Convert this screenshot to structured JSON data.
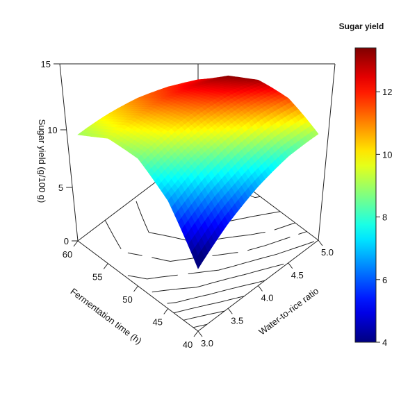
{
  "chart_data": {
    "type": "surface3d",
    "title": "Sugar yield",
    "xlabel": "Water-to-rice ratio",
    "ylabel": "Fermentation time (h)",
    "zlabel": "Sugar yield (g/100 g)",
    "x": [
      3.0,
      3.5,
      4.0,
      4.5,
      5.0
    ],
    "y": [
      40,
      45,
      50,
      55,
      60
    ],
    "z": [
      [
        3.5,
        6.6,
        8.6,
        9.4,
        9.0
      ],
      [
        5.2,
        8.1,
        9.9,
        10.6,
        10.1
      ],
      [
        6.7,
        9.4,
        11.1,
        11.7,
        11.1
      ],
      [
        8.0,
        10.6,
        12.2,
        12.6,
        11.8
      ],
      [
        9.0,
        11.6,
        13.1,
        13.3,
        12.2
      ]
    ],
    "xlim": [
      3.0,
      5.0
    ],
    "ylim": [
      40,
      60
    ],
    "zlim": [
      0,
      15
    ],
    "x_ticks": [
      "3.0",
      "3.5",
      "4.0",
      "4.5",
      "5.0"
    ],
    "y_ticks": [
      "40",
      "45",
      "50",
      "55",
      "60"
    ],
    "z_ticks": [
      "0",
      "5",
      "10",
      "15"
    ],
    "colorbar": {
      "min": 4,
      "max": 13.4,
      "ticks": [
        "4",
        "6",
        "8",
        "10",
        "12"
      ],
      "placement": "right"
    },
    "floor_contours": true
  }
}
